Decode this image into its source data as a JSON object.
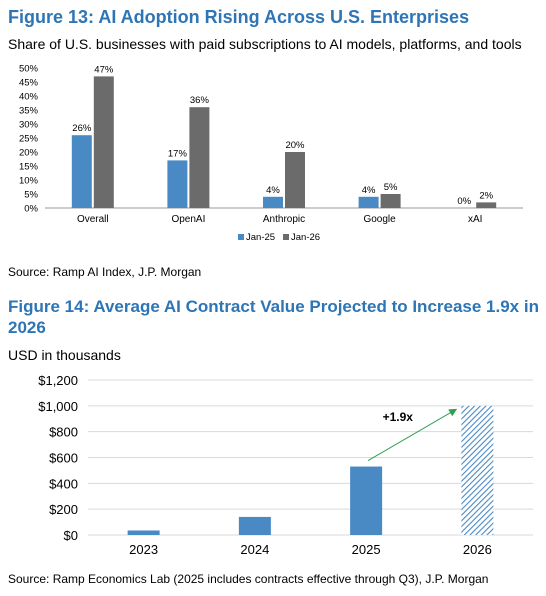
{
  "fig13": {
    "title": "Figure 13: AI Adoption Rising Across U.S. Enterprises",
    "subtitle": "Share of U.S. businesses with paid subscriptions to AI models, platforms, and tools",
    "source": "Source: Ramp AI Index, J.P. Morgan"
  },
  "fig14": {
    "title_line1": "Figure 14: Average AI Contract Value Projected to Increase 1.9x in",
    "title_line2": "2026",
    "subtitle": "USD in thousands",
    "annotation": "+1.9x",
    "source": "Source: Ramp Economics Lab (2025 includes contracts effective through Q3), J.P. Morgan"
  },
  "colors": {
    "title": "#2e75b6",
    "jan25": "#4a8ac4",
    "jan26": "#6b6b6b",
    "bar14": "#4a8ac4",
    "arrow": "#2e9e4f"
  },
  "chart_data": [
    {
      "type": "bar",
      "title": "Figure 13: AI Adoption Rising Across U.S. Enterprises",
      "categories": [
        "Overall",
        "OpenAI",
        "Anthropic",
        "Google",
        "xAI"
      ],
      "series": [
        {
          "name": "Jan-25",
          "values": [
            26,
            17,
            4,
            4,
            0
          ],
          "labels": [
            "26%",
            "17%",
            "4%",
            "4%",
            "0%"
          ]
        },
        {
          "name": "Jan-26",
          "values": [
            47,
            36,
            20,
            5,
            2
          ],
          "labels": [
            "47%",
            "36%",
            "20%",
            "5%",
            "2%"
          ]
        }
      ],
      "ylim": [
        0,
        50
      ],
      "yticks": [
        "0%",
        "5%",
        "10%",
        "15%",
        "20%",
        "25%",
        "30%",
        "35%",
        "40%",
        "45%",
        "50%"
      ],
      "legend": "bottom",
      "grid": false
    },
    {
      "type": "bar",
      "title": "Figure 14: Average AI Contract Value Projected to Increase 1.9x in 2026",
      "ylabel": "USD in thousands",
      "categories": [
        "2023",
        "2024",
        "2025",
        "2026"
      ],
      "values": [
        35,
        140,
        530,
        1000
      ],
      "projected": [
        false,
        false,
        false,
        true
      ],
      "ylim": [
        0,
        1200
      ],
      "yticks": [
        "$0",
        "$200",
        "$400",
        "$600",
        "$800",
        "$1,000",
        "$1,200"
      ],
      "grid": true
    }
  ]
}
